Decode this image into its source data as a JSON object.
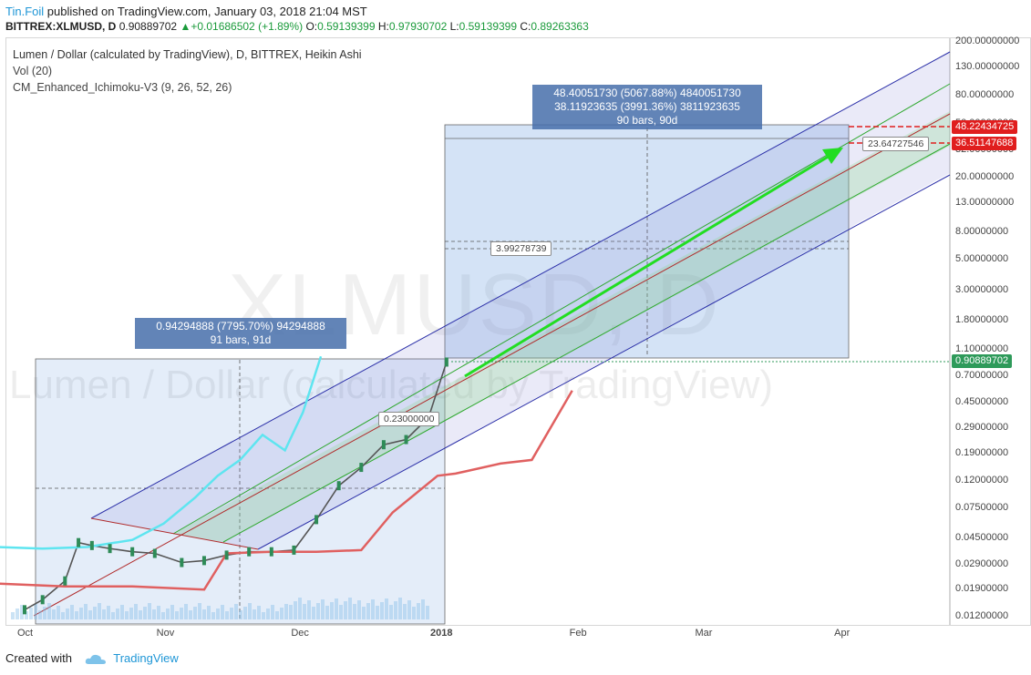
{
  "header": {
    "author": "Tin.Foil",
    "published": "published on TradingView.com, January 03, 2018 21:04 MST",
    "symbol": "BITTREX:XLMUSD, D",
    "price": "0.90889702",
    "change_arrow": "▲",
    "change": "+0.01686502 (+1.89%)",
    "o_label": "O:",
    "o": "0.59139399",
    "h_label": "H:",
    "h": "0.97930702",
    "l_label": "L:",
    "l": "0.59139399",
    "c_label": "C:",
    "c": "0.89263363"
  },
  "pane": {
    "title": "Lumen / Dollar (calculated by TradingView), D, BITTREX, Heikin Ashi",
    "indicator1": "Vol (20)",
    "indicator2": "CM_Enhanced_Ichimoku-V3 (9, 26, 52, 26)"
  },
  "watermark": {
    "symbol": "XLMUSD, D",
    "name": "Lumen / Dollar (calculated by TradingView)"
  },
  "measure_left": {
    "line1": "0.94294888 (7795.70%) 94294888",
    "line2": "91 bars, 91d"
  },
  "measure_right": {
    "line1": "48.40051730 (5067.88%) 4840051730",
    "line2": "38.11923635 (3991.36%) 3811923635",
    "line3": "90 bars, 90d"
  },
  "callouts": {
    "c1": "3.99278739",
    "c2": "23.64727546",
    "c3": "0.23000000"
  },
  "price_tags": {
    "t1": "48.22434725",
    "t2": "36.51147688",
    "t3": "0.90889702"
  },
  "colors": {
    "price_tag_red": "#e01e1e",
    "current_price_green": "#2e9a5a",
    "arrow_green": "#22dd22",
    "measure_fill": "#3d7fd6",
    "channel_blue": "#2b2fa8",
    "channel_green": "#2fa82f",
    "median_red": "#b02a2a",
    "kijun_cyan": "#5ee5f0",
    "tenkan_gray": "#808080",
    "senkou_red": "#e06060",
    "senkou_green": "#7ed67e",
    "base_blue": "#5f66e0"
  },
  "chart_data": {
    "type": "line",
    "scale": "log",
    "ylim": [
      0.011,
      210
    ],
    "xlim": [
      "2017-09-25",
      "2018-04-30"
    ],
    "y_ticks": [
      "200.00000000",
      "130.00000000",
      "80.00000000",
      "50.00000000",
      "32.00000000",
      "20.00000000",
      "13.00000000",
      "8.00000000",
      "5.00000000",
      "3.00000000",
      "1.80000000",
      "1.10000000",
      "0.70000000",
      "0.45000000",
      "0.29000000",
      "0.19000000",
      "0.12000000",
      "0.07500000",
      "0.04500000",
      "0.02900000",
      "0.01900000",
      "0.01200000"
    ],
    "x_ticks": [
      "Oct",
      "Nov",
      "Dec",
      "2018",
      "Feb",
      "Mar",
      "Apr"
    ],
    "series": [
      {
        "name": "Heikin Ashi close",
        "x": [
          "2017-10-01",
          "2017-10-05",
          "2017-10-10",
          "2017-10-13",
          "2017-10-16",
          "2017-10-20",
          "2017-10-25",
          "2017-10-30",
          "2017-11-05",
          "2017-11-10",
          "2017-11-15",
          "2017-11-20",
          "2017-11-25",
          "2017-11-30",
          "2017-12-05",
          "2017-12-10",
          "2017-12-15",
          "2017-12-20",
          "2017-12-25",
          "2017-12-30",
          "2018-01-03"
        ],
        "y": [
          0.0135,
          0.016,
          0.022,
          0.042,
          0.04,
          0.038,
          0.036,
          0.035,
          0.03,
          0.031,
          0.034,
          0.036,
          0.036,
          0.037,
          0.062,
          0.11,
          0.15,
          0.22,
          0.24,
          0.35,
          0.89
        ]
      },
      {
        "name": "Ichimoku lagging span",
        "x": [
          "2017-09-25",
          "2017-10-05",
          "2017-10-15",
          "2017-10-25",
          "2017-11-01",
          "2017-11-08",
          "2017-11-13",
          "2017-11-18",
          "2017-11-23",
          "2017-11-28",
          "2017-12-02",
          "2017-12-06"
        ],
        "y": [
          0.039,
          0.038,
          0.039,
          0.044,
          0.058,
          0.09,
          0.13,
          0.17,
          0.26,
          0.2,
          0.38,
          0.98
        ]
      },
      {
        "name": "Ichimoku senkou span",
        "x": [
          "2017-09-25",
          "2017-10-10",
          "2017-10-25",
          "2017-11-10",
          "2017-11-15",
          "2017-11-25",
          "2017-12-05",
          "2017-12-15",
          "2017-12-22",
          "2018-01-01",
          "2018-01-05",
          "2018-01-15",
          "2018-01-22",
          "2018-01-31"
        ],
        "y": [
          0.021,
          0.02,
          0.02,
          0.019,
          0.035,
          0.036,
          0.036,
          0.037,
          0.07,
          0.13,
          0.135,
          0.16,
          0.17,
          0.55
        ]
      }
    ]
  }
}
